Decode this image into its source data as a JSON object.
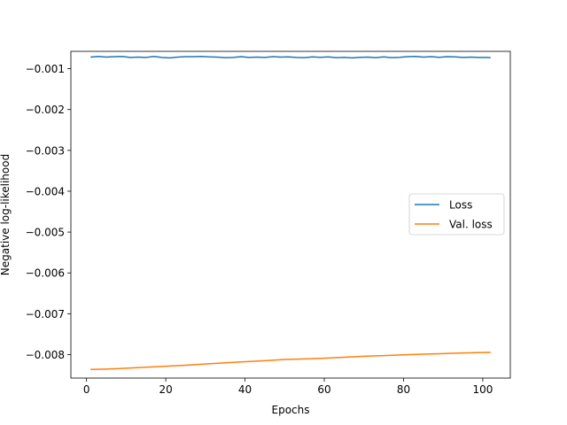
{
  "chart_data": {
    "type": "line",
    "title": "",
    "xlabel": "Epochs",
    "ylabel": "Negative log-likelihood",
    "xlim": [
      -3.95,
      106.95
    ],
    "ylim": [
      -0.008575,
      -0.000575
    ],
    "xticks": [
      0,
      20,
      40,
      60,
      80,
      100
    ],
    "xtick_labels": [
      "0",
      "20",
      "40",
      "60",
      "80",
      "100"
    ],
    "yticks": [
      -0.008,
      -0.007,
      -0.006,
      -0.005,
      -0.004,
      -0.003,
      -0.002,
      -0.001
    ],
    "ytick_labels": [
      "−0.008",
      "−0.007",
      "−0.006",
      "−0.005",
      "−0.004",
      "−0.003",
      "−0.002",
      "−0.001"
    ],
    "grid": false,
    "legend_position": "center-right",
    "series": [
      {
        "name": "Loss",
        "color": "#1f77b4",
        "x": [
          1,
          3,
          5,
          7,
          9,
          11,
          13,
          15,
          17,
          19,
          21,
          23,
          25,
          27,
          29,
          31,
          33,
          35,
          37,
          39,
          41,
          43,
          45,
          47,
          49,
          51,
          53,
          55,
          57,
          59,
          61,
          63,
          65,
          67,
          69,
          71,
          73,
          75,
          77,
          79,
          81,
          83,
          85,
          87,
          89,
          91,
          93,
          95,
          97,
          99,
          101,
          102
        ],
        "y": [
          -0.000715,
          -0.0007,
          -0.000715,
          -0.000705,
          -0.0007,
          -0.000725,
          -0.000715,
          -0.000725,
          -0.0007,
          -0.000725,
          -0.000735,
          -0.000715,
          -0.000705,
          -0.000705,
          -0.0007,
          -0.00071,
          -0.000715,
          -0.00073,
          -0.000725,
          -0.000705,
          -0.000725,
          -0.000715,
          -0.000725,
          -0.000705,
          -0.000715,
          -0.00071,
          -0.000725,
          -0.00073,
          -0.00071,
          -0.00072,
          -0.00071,
          -0.00073,
          -0.00072,
          -0.000735,
          -0.00072,
          -0.000715,
          -0.00073,
          -0.00071,
          -0.00073,
          -0.00072,
          -0.000705,
          -0.0007,
          -0.000715,
          -0.000705,
          -0.00072,
          -0.000705,
          -0.00071,
          -0.000725,
          -0.000715,
          -0.000725,
          -0.000725,
          -0.00073
        ]
      },
      {
        "name": "Val. loss",
        "color": "#ff7f0e",
        "x": [
          1,
          5,
          10,
          15,
          20,
          25,
          30,
          35,
          40,
          45,
          50,
          55,
          60,
          65,
          70,
          75,
          80,
          85,
          90,
          95,
          100,
          102
        ],
        "y": [
          -0.008365,
          -0.008355,
          -0.008335,
          -0.00831,
          -0.008285,
          -0.00826,
          -0.00823,
          -0.0082,
          -0.008175,
          -0.00815,
          -0.00812,
          -0.008105,
          -0.00809,
          -0.008065,
          -0.00804,
          -0.008025,
          -0.008005,
          -0.00799,
          -0.007975,
          -0.00796,
          -0.00795,
          -0.007945
        ]
      }
    ]
  }
}
